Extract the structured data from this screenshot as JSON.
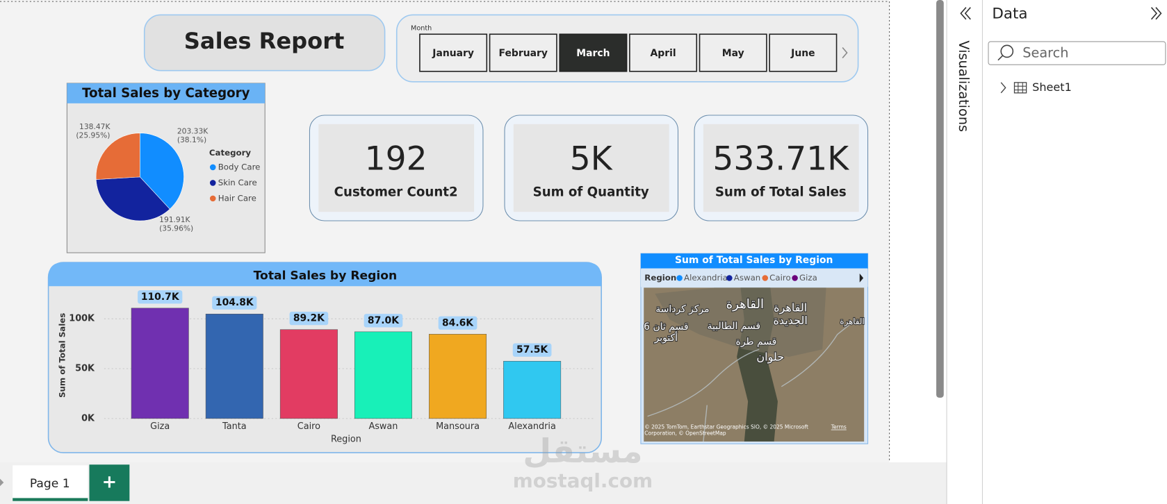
{
  "header": {
    "title": "Sales Report"
  },
  "month_slicer": {
    "label": "Month",
    "options": [
      "January",
      "February",
      "March",
      "April",
      "May",
      "June"
    ],
    "selected_index": 2
  },
  "pie_chart": {
    "type": "pie",
    "title": "Total Sales by Category",
    "legend_title": "Category",
    "categories": [
      "Body Care",
      "Skin Care",
      "Hair Care"
    ],
    "values": [
      203.33,
      191.91,
      138.47
    ],
    "value_labels": [
      "203.33K\n(38.1%)",
      "191.91K\n(35.96%)",
      "138.47K\n(25.95%)"
    ],
    "colors": [
      "#118dff",
      "#12239e",
      "#e66c37"
    ]
  },
  "cards": [
    {
      "value": "192",
      "label": "Customer Count2"
    },
    {
      "value": "5K",
      "label": "Sum of Quantity"
    },
    {
      "value": "533.71K",
      "label": "Sum of Total Sales"
    }
  ],
  "bar_chart": {
    "type": "bar",
    "title": "Total Sales by Region",
    "x_label": "Region",
    "y_label": "Sum of Total Sales",
    "categories": [
      "Giza",
      "Tanta",
      "Cairo",
      "Aswan",
      "Mansoura",
      "Alexandria"
    ],
    "values": [
      110700,
      104800,
      89200,
      87000,
      84600,
      57500
    ],
    "value_labels": [
      "110.7K",
      "104.8K",
      "89.2K",
      "87.0K",
      "84.6K",
      "57.5K"
    ],
    "colors": [
      "#7030b0",
      "#3366b0",
      "#e23c62",
      "#18f0b8",
      "#f0a820",
      "#30c8f0"
    ],
    "ylim": [
      0,
      120000
    ],
    "yticks": [
      {
        "value": 0,
        "label": "0K"
      },
      {
        "value": 50000,
        "label": "50K"
      },
      {
        "value": 100000,
        "label": "100K"
      }
    ],
    "grid": true
  },
  "map": {
    "title": "Sum of Total Sales by Region",
    "legend_title": "Region",
    "legend": [
      {
        "name": "Alexandria",
        "color": "#118dff"
      },
      {
        "name": "Aswan",
        "color": "#12239e"
      },
      {
        "name": "Cairo",
        "color": "#e66c37"
      },
      {
        "name": "Giza",
        "color": "#6b007b"
      }
    ],
    "place_labels": [
      "مركز كرداسة",
      "القاهرة",
      "القاهرة\nالجديدة",
      "قسم الطالبية",
      "قسم ثان 6\nأكتوبر",
      "قسم طرة",
      "حلوان",
      "القاهرة"
    ],
    "credit": "© 2025 TomTom, Earthstar Geographics SIO, © 2025 Microsoft\nCorporation, © OpenStreetMap",
    "terms": "Terms"
  },
  "panes": {
    "visualizations": "Visualizations",
    "data": {
      "title": "Data",
      "search_placeholder": "Search",
      "tree": [
        "Sheet1"
      ]
    }
  },
  "page_tabs": {
    "tabs": [
      "Page 1"
    ],
    "add": "+"
  },
  "watermark": {
    "arabic": "مستقل",
    "latin": "mostaql.com"
  }
}
